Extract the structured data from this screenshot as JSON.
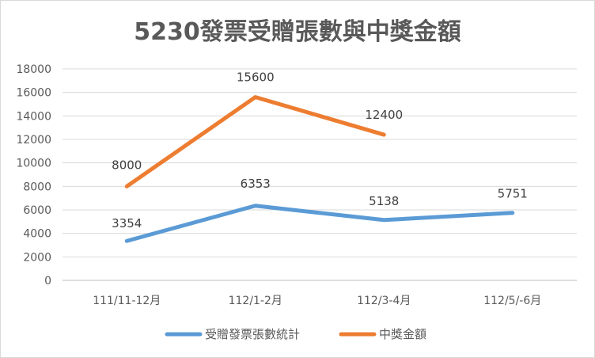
{
  "chart_data": {
    "type": "line",
    "title": "5230發票受贈張數與中獎金額",
    "categories": [
      "111/11-12月",
      "112/1-2月",
      "112/3-4月",
      "112/5/-6月"
    ],
    "y_ticks": [
      "0",
      "2000",
      "4000",
      "6000",
      "8000",
      "10000",
      "12000",
      "14000",
      "16000",
      "18000"
    ],
    "ylim": [
      0,
      18000
    ],
    "grid": "horizontal",
    "legend_position": "bottom",
    "series": [
      {
        "name": "受贈發票張數統計",
        "color": "#5b9bd5",
        "values": [
          3354,
          6353,
          5138,
          5751
        ],
        "labels": [
          "3354",
          "6353",
          "5138",
          "5751"
        ]
      },
      {
        "name": "中獎金額",
        "color": "#ed7d31",
        "values": [
          8000,
          15600,
          12400,
          null
        ],
        "labels": [
          "8000",
          "15600",
          "12400",
          null
        ]
      }
    ]
  }
}
